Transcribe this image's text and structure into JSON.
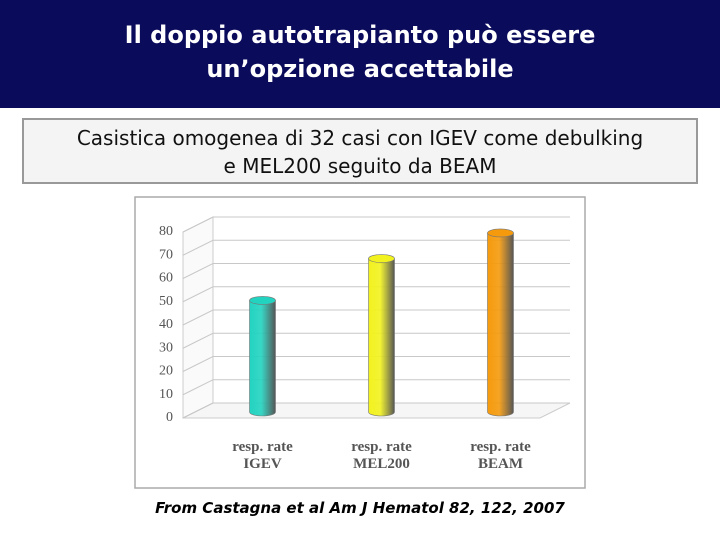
{
  "header": {
    "title_lines": [
      "Il doppio autotrapianto può essere",
      "un’opzione accettabile"
    ]
  },
  "subtitle_lines": [
    "Casistica omogenea di 32 casi con IGEV come debulking",
    "e MEL200 seguito da BEAM"
  ],
  "chart_data": {
    "type": "bar",
    "categories": [
      "resp. rate IGEV",
      "resp. rate MEL200",
      "resp. rate BEAM"
    ],
    "series": [
      {
        "values": [
          48,
          66,
          77
        ],
        "colors": [
          "#22d3c0",
          "#f2f21e",
          "#f59a0c"
        ]
      }
    ],
    "ylim": [
      0,
      80
    ],
    "yticks": [
      0,
      10,
      20,
      30,
      40,
      50,
      60,
      70,
      80
    ],
    "grid": true
  },
  "citation": "From Castagna et al Am J Hematol 82, 122, 2007"
}
